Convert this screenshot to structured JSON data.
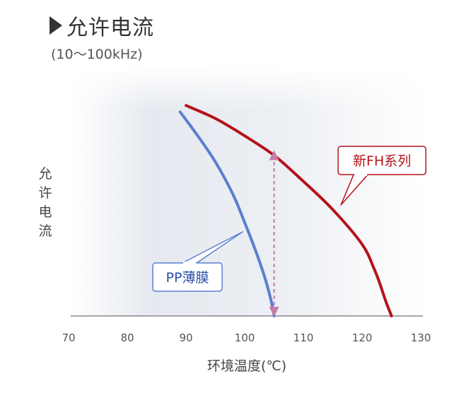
{
  "title": "允许电流",
  "subtitle": "(10～100kHz)",
  "chart_data": {
    "type": "line",
    "xlabel": "环境温度(℃)",
    "ylabel": "允许电流",
    "xlim": [
      70,
      130
    ],
    "xticks": [
      70,
      80,
      90,
      100,
      110,
      120,
      130
    ],
    "grid": false,
    "series": [
      {
        "name": "新FH系列",
        "color": "#b5121b",
        "x": [
          90,
          95,
          100,
          105,
          110,
          115,
          120,
          122,
          123,
          124,
          125
        ],
        "y": [
          0.97,
          0.91,
          0.83,
          0.74,
          0.62,
          0.49,
          0.33,
          0.22,
          0.15,
          0.07,
          0.0
        ]
      },
      {
        "name": "PP薄膜",
        "color": "#5b7fcf",
        "x": [
          89,
          92,
          95,
          98,
          100,
          102,
          103.5,
          104.5,
          105
        ],
        "y": [
          0.94,
          0.83,
          0.71,
          0.56,
          0.43,
          0.29,
          0.17,
          0.07,
          0.0
        ]
      }
    ],
    "annotation": {
      "type": "double-arrow",
      "x": 105,
      "y_from": 0.0,
      "y_to": 0.76,
      "color": "#c77aa6"
    },
    "callouts": [
      {
        "series": "新FH系列",
        "text": "新FH系列",
        "color": "#b5121b"
      },
      {
        "series": "PP薄膜",
        "text": "PP薄膜",
        "color": "#2a4fa8"
      }
    ]
  }
}
